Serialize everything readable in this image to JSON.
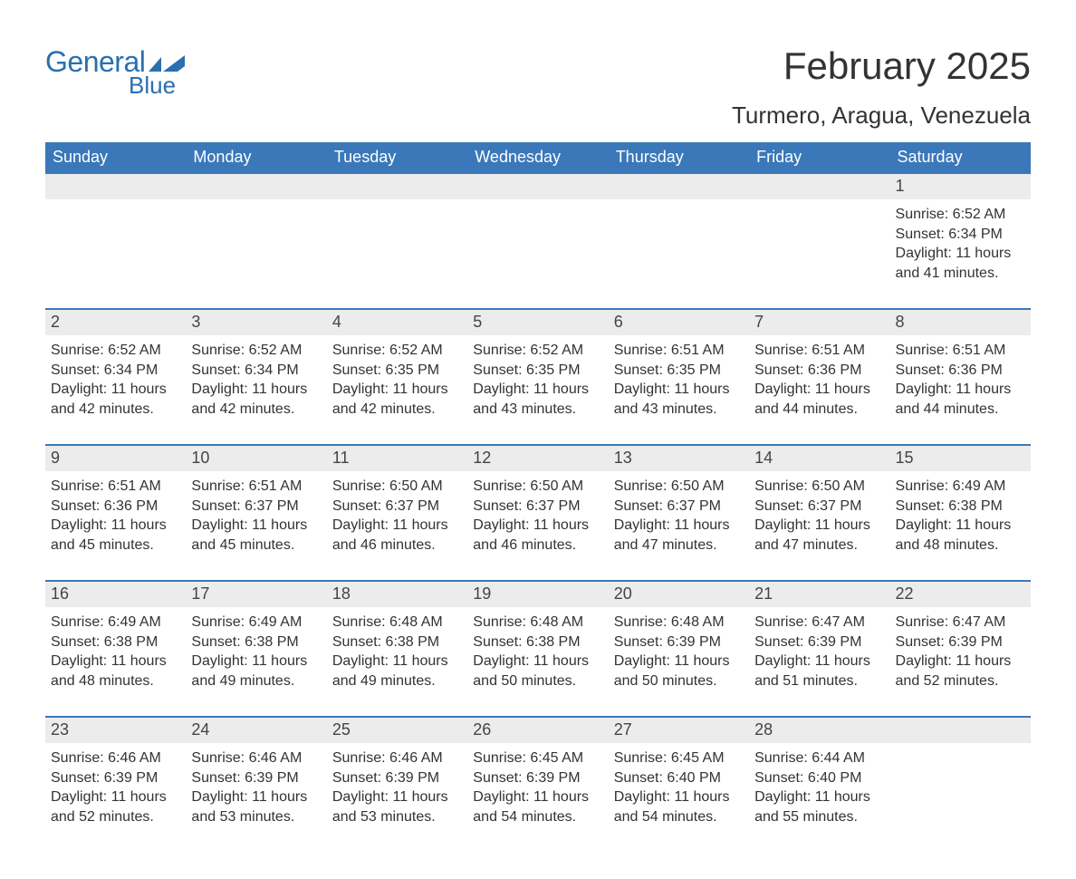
{
  "brand": {
    "word1": "General",
    "word2": "Blue",
    "flag_color": "#2a6fb0",
    "text_color": "#2a6fb0"
  },
  "title": "February 2025",
  "location": "Turmero, Aragua, Venezuela",
  "colors": {
    "header_bg": "#3a78b9",
    "header_text": "#ffffff",
    "daynum_bg": "#ececec",
    "row_border": "#3a78b9",
    "body_text": "#333333",
    "page_bg": "#ffffff"
  },
  "typography": {
    "title_fontsize": 42,
    "location_fontsize": 26,
    "weekday_fontsize": 18,
    "daynum_fontsize": 18,
    "cell_fontsize": 16
  },
  "weekdays": [
    "Sunday",
    "Monday",
    "Tuesday",
    "Wednesday",
    "Thursday",
    "Friday",
    "Saturday"
  ],
  "weeks": [
    [
      null,
      null,
      null,
      null,
      null,
      null,
      {
        "n": "1",
        "sunrise": "Sunrise: 6:52 AM",
        "sunset": "Sunset: 6:34 PM",
        "dl1": "Daylight: 11 hours",
        "dl2": "and 41 minutes."
      }
    ],
    [
      {
        "n": "2",
        "sunrise": "Sunrise: 6:52 AM",
        "sunset": "Sunset: 6:34 PM",
        "dl1": "Daylight: 11 hours",
        "dl2": "and 42 minutes."
      },
      {
        "n": "3",
        "sunrise": "Sunrise: 6:52 AM",
        "sunset": "Sunset: 6:34 PM",
        "dl1": "Daylight: 11 hours",
        "dl2": "and 42 minutes."
      },
      {
        "n": "4",
        "sunrise": "Sunrise: 6:52 AM",
        "sunset": "Sunset: 6:35 PM",
        "dl1": "Daylight: 11 hours",
        "dl2": "and 42 minutes."
      },
      {
        "n": "5",
        "sunrise": "Sunrise: 6:52 AM",
        "sunset": "Sunset: 6:35 PM",
        "dl1": "Daylight: 11 hours",
        "dl2": "and 43 minutes."
      },
      {
        "n": "6",
        "sunrise": "Sunrise: 6:51 AM",
        "sunset": "Sunset: 6:35 PM",
        "dl1": "Daylight: 11 hours",
        "dl2": "and 43 minutes."
      },
      {
        "n": "7",
        "sunrise": "Sunrise: 6:51 AM",
        "sunset": "Sunset: 6:36 PM",
        "dl1": "Daylight: 11 hours",
        "dl2": "and 44 minutes."
      },
      {
        "n": "8",
        "sunrise": "Sunrise: 6:51 AM",
        "sunset": "Sunset: 6:36 PM",
        "dl1": "Daylight: 11 hours",
        "dl2": "and 44 minutes."
      }
    ],
    [
      {
        "n": "9",
        "sunrise": "Sunrise: 6:51 AM",
        "sunset": "Sunset: 6:36 PM",
        "dl1": "Daylight: 11 hours",
        "dl2": "and 45 minutes."
      },
      {
        "n": "10",
        "sunrise": "Sunrise: 6:51 AM",
        "sunset": "Sunset: 6:37 PM",
        "dl1": "Daylight: 11 hours",
        "dl2": "and 45 minutes."
      },
      {
        "n": "11",
        "sunrise": "Sunrise: 6:50 AM",
        "sunset": "Sunset: 6:37 PM",
        "dl1": "Daylight: 11 hours",
        "dl2": "and 46 minutes."
      },
      {
        "n": "12",
        "sunrise": "Sunrise: 6:50 AM",
        "sunset": "Sunset: 6:37 PM",
        "dl1": "Daylight: 11 hours",
        "dl2": "and 46 minutes."
      },
      {
        "n": "13",
        "sunrise": "Sunrise: 6:50 AM",
        "sunset": "Sunset: 6:37 PM",
        "dl1": "Daylight: 11 hours",
        "dl2": "and 47 minutes."
      },
      {
        "n": "14",
        "sunrise": "Sunrise: 6:50 AM",
        "sunset": "Sunset: 6:37 PM",
        "dl1": "Daylight: 11 hours",
        "dl2": "and 47 minutes."
      },
      {
        "n": "15",
        "sunrise": "Sunrise: 6:49 AM",
        "sunset": "Sunset: 6:38 PM",
        "dl1": "Daylight: 11 hours",
        "dl2": "and 48 minutes."
      }
    ],
    [
      {
        "n": "16",
        "sunrise": "Sunrise: 6:49 AM",
        "sunset": "Sunset: 6:38 PM",
        "dl1": "Daylight: 11 hours",
        "dl2": "and 48 minutes."
      },
      {
        "n": "17",
        "sunrise": "Sunrise: 6:49 AM",
        "sunset": "Sunset: 6:38 PM",
        "dl1": "Daylight: 11 hours",
        "dl2": "and 49 minutes."
      },
      {
        "n": "18",
        "sunrise": "Sunrise: 6:48 AM",
        "sunset": "Sunset: 6:38 PM",
        "dl1": "Daylight: 11 hours",
        "dl2": "and 49 minutes."
      },
      {
        "n": "19",
        "sunrise": "Sunrise: 6:48 AM",
        "sunset": "Sunset: 6:38 PM",
        "dl1": "Daylight: 11 hours",
        "dl2": "and 50 minutes."
      },
      {
        "n": "20",
        "sunrise": "Sunrise: 6:48 AM",
        "sunset": "Sunset: 6:39 PM",
        "dl1": "Daylight: 11 hours",
        "dl2": "and 50 minutes."
      },
      {
        "n": "21",
        "sunrise": "Sunrise: 6:47 AM",
        "sunset": "Sunset: 6:39 PM",
        "dl1": "Daylight: 11 hours",
        "dl2": "and 51 minutes."
      },
      {
        "n": "22",
        "sunrise": "Sunrise: 6:47 AM",
        "sunset": "Sunset: 6:39 PM",
        "dl1": "Daylight: 11 hours",
        "dl2": "and 52 minutes."
      }
    ],
    [
      {
        "n": "23",
        "sunrise": "Sunrise: 6:46 AM",
        "sunset": "Sunset: 6:39 PM",
        "dl1": "Daylight: 11 hours",
        "dl2": "and 52 minutes."
      },
      {
        "n": "24",
        "sunrise": "Sunrise: 6:46 AM",
        "sunset": "Sunset: 6:39 PM",
        "dl1": "Daylight: 11 hours",
        "dl2": "and 53 minutes."
      },
      {
        "n": "25",
        "sunrise": "Sunrise: 6:46 AM",
        "sunset": "Sunset: 6:39 PM",
        "dl1": "Daylight: 11 hours",
        "dl2": "and 53 minutes."
      },
      {
        "n": "26",
        "sunrise": "Sunrise: 6:45 AM",
        "sunset": "Sunset: 6:39 PM",
        "dl1": "Daylight: 11 hours",
        "dl2": "and 54 minutes."
      },
      {
        "n": "27",
        "sunrise": "Sunrise: 6:45 AM",
        "sunset": "Sunset: 6:40 PM",
        "dl1": "Daylight: 11 hours",
        "dl2": "and 54 minutes."
      },
      {
        "n": "28",
        "sunrise": "Sunrise: 6:44 AM",
        "sunset": "Sunset: 6:40 PM",
        "dl1": "Daylight: 11 hours",
        "dl2": "and 55 minutes."
      },
      null
    ]
  ]
}
